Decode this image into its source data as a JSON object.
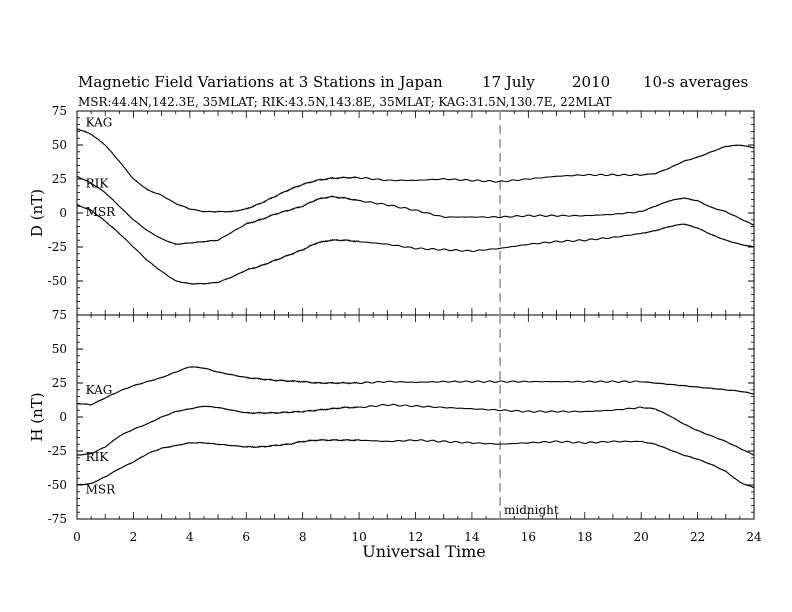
{
  "title": {
    "main": "Magnetic Field Variations at 3 Stations in Japan",
    "date": "17 July",
    "year": "2010",
    "avg": "10-s averages",
    "stations": "MSR:44.4N,142.3E, 35MLAT;   RIK:43.5N,143.8E, 35MLAT;   KAG:31.5N,130.7E, 22MLAT"
  },
  "xlabel": "Universal Time",
  "midnight_label": "midnight",
  "colors": {
    "line": "#000000",
    "midnight": "#999999"
  },
  "chart_data": [
    {
      "type": "line",
      "ylabel": "D (nT)",
      "xlim": [
        0,
        24
      ],
      "ylim": [
        -75,
        75
      ],
      "yticks": [
        75,
        50,
        25,
        0,
        -25,
        -50,
        -75
      ],
      "grid": false,
      "midnight_x": 15,
      "series": [
        {
          "name": "KAG",
          "label_at": [
            0.2,
            63
          ],
          "x": [
            0,
            0.5,
            1,
            1.5,
            2,
            2.5,
            3,
            3.5,
            4,
            4.5,
            5,
            5.5,
            6,
            6.5,
            7,
            7.5,
            8,
            8.5,
            9,
            9.5,
            10,
            11,
            12,
            13,
            14,
            15,
            16,
            17,
            18,
            19,
            20,
            20.5,
            21,
            21.5,
            22,
            22.5,
            23,
            23.5,
            24
          ],
          "y": [
            62,
            58,
            50,
            38,
            25,
            17,
            13,
            7,
            3,
            1,
            1,
            1,
            3,
            7,
            12,
            17,
            21,
            24,
            25.5,
            26,
            26,
            24,
            24,
            25,
            24,
            23,
            25,
            27,
            28,
            28,
            28,
            29,
            33,
            38,
            41,
            45,
            49,
            50,
            48
          ]
        },
        {
          "name": "RIK",
          "label_at": [
            0.2,
            18
          ],
          "x": [
            0,
            0.5,
            1,
            1.5,
            2,
            2.5,
            3,
            3.5,
            4,
            4.5,
            5,
            5.5,
            6,
            6.5,
            7,
            7.5,
            8,
            8.5,
            9,
            9.5,
            10,
            11,
            12,
            13,
            14,
            15,
            16,
            17,
            18,
            19,
            20,
            20.5,
            21,
            21.5,
            22,
            22.5,
            23,
            23.5,
            24
          ],
          "y": [
            27,
            22,
            15,
            5,
            -5,
            -13,
            -19,
            -23,
            -22,
            -21,
            -20,
            -14,
            -8,
            -5,
            -1,
            2,
            5,
            10,
            12,
            11,
            9,
            6,
            2,
            -3,
            -3,
            -3,
            -2,
            -2,
            -2,
            -1,
            1,
            5,
            9,
            11,
            9,
            4,
            1,
            -4,
            -9
          ]
        },
        {
          "name": "MSR",
          "label_at": [
            0.2,
            -3
          ],
          "x": [
            0,
            0.5,
            1,
            1.5,
            2,
            2.5,
            3,
            3.5,
            4,
            4.5,
            5,
            5.5,
            6,
            6.5,
            7,
            7.5,
            8,
            8.5,
            9,
            9.5,
            10,
            11,
            12,
            13,
            14,
            15,
            16,
            17,
            18,
            19,
            20,
            20.5,
            21,
            21.5,
            22,
            22.5,
            23,
            23.5,
            24
          ],
          "y": [
            6,
            2,
            -6,
            -15,
            -25,
            -35,
            -43,
            -50,
            -52,
            -52,
            -51,
            -47,
            -42,
            -39,
            -35,
            -31,
            -27,
            -22,
            -20,
            -20,
            -21,
            -23,
            -26,
            -27,
            -28,
            -26,
            -23,
            -21,
            -20,
            -18,
            -15,
            -13,
            -10,
            -8,
            -11,
            -16,
            -20,
            -23,
            -25
          ]
        }
      ]
    },
    {
      "type": "line",
      "ylabel": "H (nT)",
      "xlim": [
        0,
        24
      ],
      "ylim": [
        -75,
        75
      ],
      "yticks": [
        75,
        50,
        25,
        0,
        -25,
        -50,
        -75
      ],
      "grid": false,
      "midnight_x": 15,
      "series": [
        {
          "name": "KAG",
          "label_at": [
            0.2,
            16
          ],
          "x": [
            0,
            0.5,
            1,
            1.5,
            2,
            2.5,
            3,
            3.5,
            4,
            4.5,
            5,
            5.5,
            6,
            6.5,
            7,
            7.5,
            8,
            8.5,
            9,
            9.5,
            10,
            11,
            12,
            13,
            14,
            15,
            16,
            17,
            18,
            19,
            20,
            20.5,
            21,
            21.5,
            22,
            22.5,
            23,
            23.5,
            24
          ],
          "y": [
            10,
            9,
            14,
            19,
            23,
            26,
            29,
            33,
            37,
            36,
            33,
            31,
            29,
            28,
            27,
            26.5,
            26,
            25,
            25,
            25,
            25,
            26,
            25.5,
            26,
            26,
            26,
            26,
            26,
            26,
            26,
            26,
            25,
            24,
            23,
            22,
            21,
            20,
            19,
            17
          ]
        },
        {
          "name": "RIK",
          "label_at": [
            0.2,
            -33
          ],
          "x": [
            0,
            0.5,
            1,
            1.5,
            2,
            2.5,
            3,
            3.5,
            4,
            4.5,
            5,
            5.5,
            6,
            6.5,
            7,
            7.5,
            8,
            8.5,
            9,
            9.5,
            10,
            11,
            12,
            13,
            14,
            15,
            16,
            17,
            18,
            19,
            20,
            20.5,
            21,
            21.5,
            22,
            22.5,
            23,
            23.5,
            24
          ],
          "y": [
            -28,
            -27,
            -22,
            -14,
            -9,
            -5,
            0,
            4,
            6,
            8,
            7,
            5,
            3,
            3,
            3,
            3.5,
            4,
            5,
            6,
            7,
            7,
            9,
            8,
            7,
            6,
            5,
            4,
            4,
            4,
            5,
            7,
            6,
            1,
            -5,
            -10,
            -14,
            -18,
            -23,
            -28
          ]
        },
        {
          "name": "MSR",
          "label_at": [
            0.2,
            -57
          ],
          "x": [
            0,
            0.5,
            1,
            1.5,
            2,
            2.5,
            3,
            3.5,
            4,
            4.5,
            5,
            5.5,
            6,
            6.5,
            7,
            7.5,
            8,
            8.5,
            9,
            9.5,
            10,
            11,
            12,
            13,
            14,
            15,
            16,
            17,
            18,
            19,
            20,
            20.5,
            21,
            21.5,
            22,
            22.5,
            23,
            23.5,
            24
          ],
          "y": [
            -50,
            -49,
            -44,
            -38,
            -33,
            -27,
            -23,
            -21,
            -19,
            -19,
            -20,
            -21,
            -22,
            -22,
            -21,
            -20,
            -18,
            -17,
            -17,
            -17,
            -17,
            -18,
            -17,
            -18,
            -19,
            -20,
            -19,
            -18,
            -19,
            -18,
            -18,
            -20,
            -24,
            -28,
            -31,
            -35,
            -40,
            -48,
            -52
          ]
        }
      ]
    }
  ]
}
